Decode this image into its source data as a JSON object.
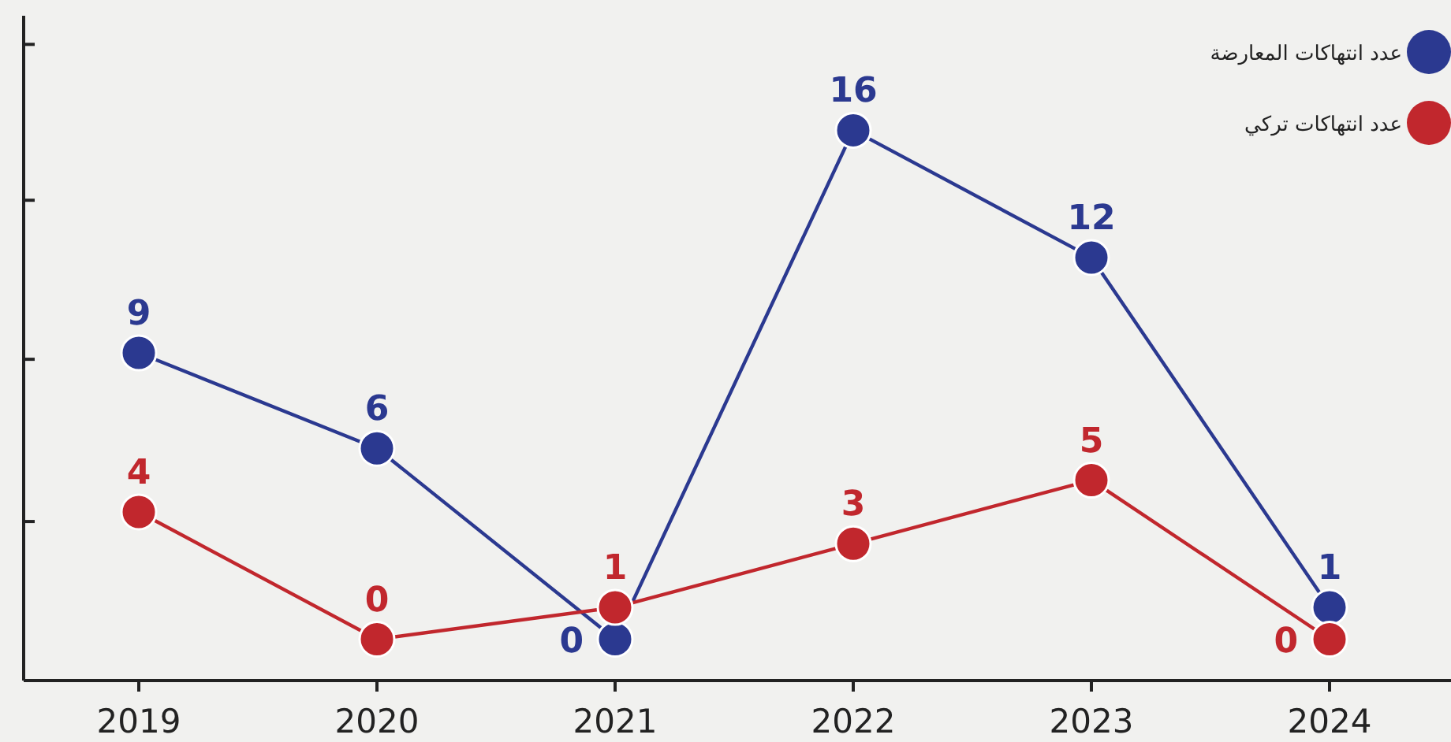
{
  "chart_data": {
    "type": "line",
    "categories": [
      "2019",
      "2020",
      "2021",
      "2022",
      "2023",
      "2024"
    ],
    "series": [
      {
        "name": "عدد انتهاكات المعارضة",
        "color": "#2b3990",
        "values": [
          9,
          6,
          0,
          16,
          12,
          1
        ]
      },
      {
        "name": "عدد انتهاكات تركي",
        "color": "#c1272d",
        "values": [
          4,
          0,
          1,
          3,
          5,
          0
        ]
      }
    ],
    "ylim": [
      -1.3,
      19.6
    ],
    "yticks": [
      {
        "value": 3.7,
        "label": null
      },
      {
        "value": 8.8,
        "label": null
      },
      {
        "value": 13.8,
        "label": null
      },
      {
        "value": 18.7,
        "label": null
      }
    ],
    "tick_labels": "x",
    "data_labels": true,
    "marker": "circle",
    "line_style": "solid",
    "legend": "top right",
    "grid": false
  }
}
